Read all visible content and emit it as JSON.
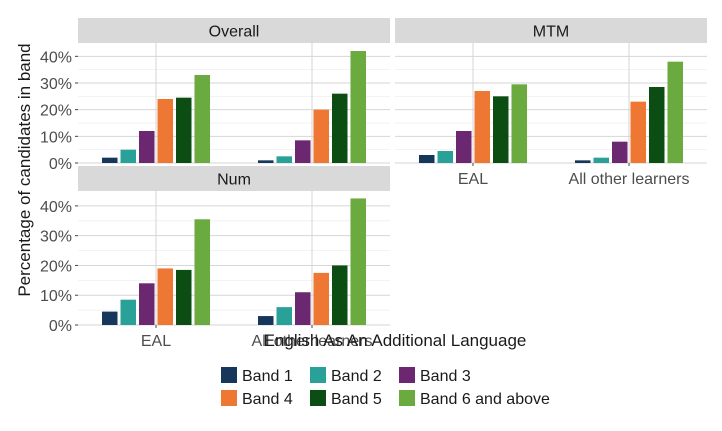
{
  "chart_data": {
    "type": "bar",
    "layout": "faceted 2x2 grid (three panels)",
    "xlabel": "English As An Additional Language",
    "ylabel": "Percentage of candidates in band",
    "categories": [
      "EAL",
      "All other learners"
    ],
    "ylim": [
      0,
      45
    ],
    "y_ticks": [
      0,
      10,
      20,
      30,
      40
    ],
    "y_tick_labels": [
      "0%",
      "10%",
      "20%",
      "30%",
      "40%"
    ],
    "grid": true,
    "legend_position": "bottom",
    "series": [
      {
        "name": "Band 1",
        "color": "#16365c"
      },
      {
        "name": "Band 2",
        "color": "#2aa198"
      },
      {
        "name": "Band 3",
        "color": "#6b2770"
      },
      {
        "name": "Band 4",
        "color": "#ee7733"
      },
      {
        "name": "Band 5",
        "color": "#0b4d13"
      },
      {
        "name": "Band 6 and above",
        "color": "#6aaa3f"
      }
    ],
    "panels": [
      {
        "title": "Overall",
        "values": {
          "EAL": [
            2,
            5,
            12,
            24,
            24.5,
            33
          ],
          "All other learners": [
            1,
            2.5,
            8.5,
            20,
            26,
            42
          ]
        }
      },
      {
        "title": "MTM",
        "values": {
          "EAL": [
            3,
            4.5,
            12,
            27,
            25,
            29.5
          ],
          "All other learners": [
            1,
            2,
            8,
            23,
            28.5,
            38
          ]
        }
      },
      {
        "title": "Num",
        "values": {
          "EAL": [
            4.5,
            8.5,
            14,
            19,
            18.5,
            35.5
          ],
          "All other learners": [
            3,
            6,
            11,
            17.5,
            20,
            42.5
          ]
        }
      }
    ]
  }
}
